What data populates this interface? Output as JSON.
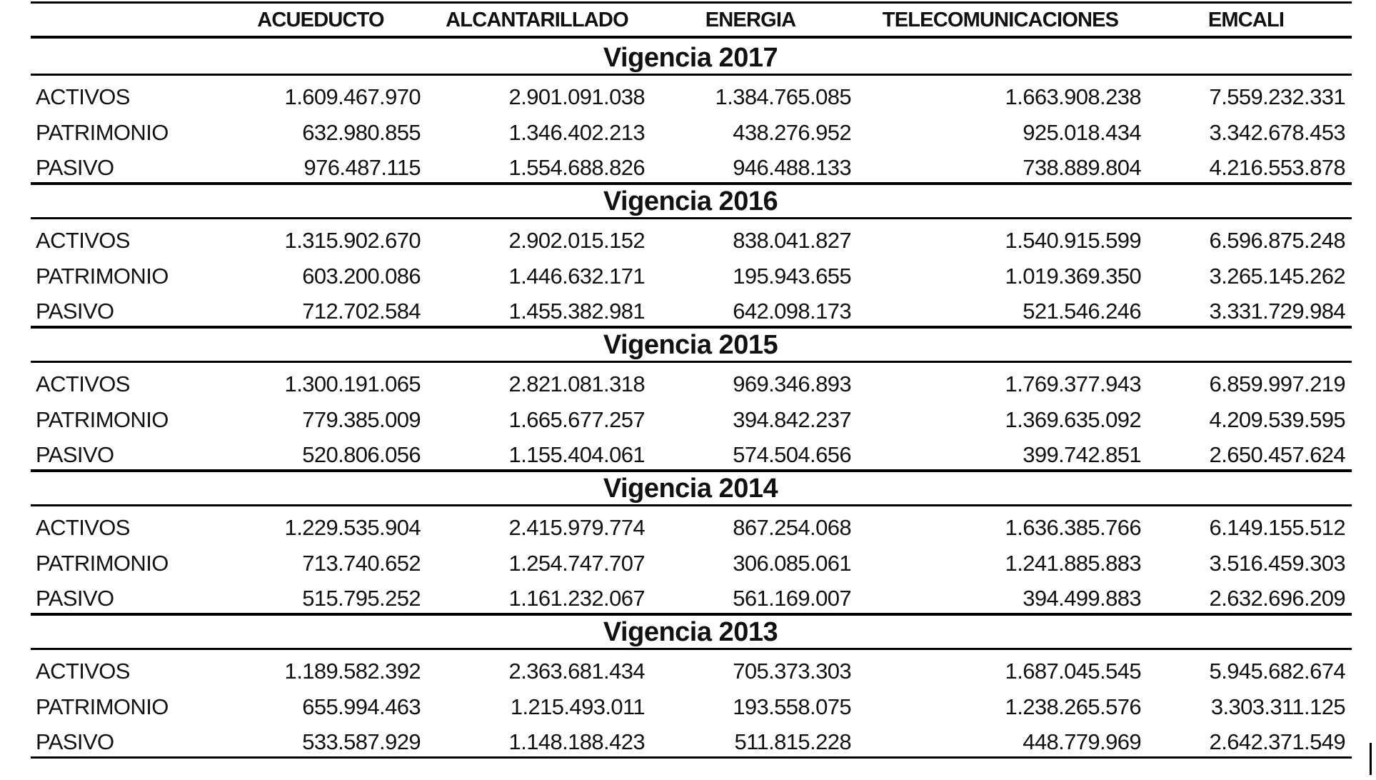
{
  "table": {
    "columns": [
      "ACUEDUCTO",
      "ALCANTARILLADO",
      "ENERGIA",
      "TELECOMUNICACIONES",
      "EMCALI"
    ],
    "sections": [
      {
        "title": "Vigencia 2017",
        "rows": [
          {
            "label": "ACTIVOS",
            "values": [
              "1.609.467.970",
              "2.901.091.038",
              "1.384.765.085",
              "1.663.908.238",
              "7.559.232.331"
            ]
          },
          {
            "label": "PATRIMONIO",
            "values": [
              "632.980.855",
              "1.346.402.213",
              "438.276.952",
              "925.018.434",
              "3.342.678.453"
            ]
          },
          {
            "label": "PASIVO",
            "values": [
              "976.487.115",
              "1.554.688.826",
              "946.488.133",
              "738.889.804",
              "4.216.553.878"
            ]
          }
        ]
      },
      {
        "title": "Vigencia 2016",
        "rows": [
          {
            "label": "ACTIVOS",
            "values": [
              "1.315.902.670",
              "2.902.015.152",
              "838.041.827",
              "1.540.915.599",
              "6.596.875.248"
            ]
          },
          {
            "label": "PATRIMONIO",
            "values": [
              "603.200.086",
              "1.446.632.171",
              "195.943.655",
              "1.019.369.350",
              "3.265.145.262"
            ]
          },
          {
            "label": "PASIVO",
            "values": [
              "712.702.584",
              "1.455.382.981",
              "642.098.173",
              "521.546.246",
              "3.331.729.984"
            ]
          }
        ]
      },
      {
        "title": "Vigencia 2015",
        "rows": [
          {
            "label": "ACTIVOS",
            "values": [
              "1.300.191.065",
              "2.821.081.318",
              "969.346.893",
              "1.769.377.943",
              "6.859.997.219"
            ]
          },
          {
            "label": "PATRIMONIO",
            "values": [
              "779.385.009",
              "1.665.677.257",
              "394.842.237",
              "1.369.635.092",
              "4.209.539.595"
            ]
          },
          {
            "label": "PASIVO",
            "values": [
              "520.806.056",
              "1.155.404.061",
              "574.504.656",
              "399.742.851",
              "2.650.457.624"
            ]
          }
        ]
      },
      {
        "title": "Vigencia 2014",
        "rows": [
          {
            "label": "ACTIVOS",
            "values": [
              "1.229.535.904",
              "2.415.979.774",
              "867.254.068",
              "1.636.385.766",
              "6.149.155.512"
            ]
          },
          {
            "label": "PATRIMONIO",
            "values": [
              "713.740.652",
              "1.254.747.707",
              "306.085.061",
              "1.241.885.883",
              "3.516.459.303"
            ]
          },
          {
            "label": "PASIVO",
            "values": [
              "515.795.252",
              "1.161.232.067",
              "561.169.007",
              "394.499.883",
              "2.632.696.209"
            ]
          }
        ]
      },
      {
        "title": "Vigencia 2013",
        "rows": [
          {
            "label": "ACTIVOS",
            "values": [
              "1.189.582.392",
              "2.363.681.434",
              "705.373.303",
              "1.687.045.545",
              "5.945.682.674"
            ]
          },
          {
            "label": "PATRIMONIO",
            "values": [
              "655.994.463",
              "1.215.493.011",
              "193.558.075",
              "1.238.265.576",
              "3.303.311.125"
            ]
          },
          {
            "label": "PASIVO",
            "values": [
              "533.587.929",
              "1.148.188.423",
              "511.815.228",
              "448.779.969",
              "2.642.371.549"
            ]
          }
        ]
      }
    ]
  }
}
